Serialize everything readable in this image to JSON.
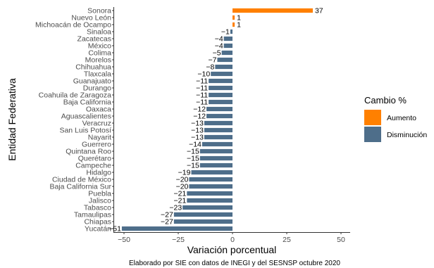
{
  "chart_data": {
    "type": "bar",
    "orientation": "horizontal",
    "xlabel": "Variación porcentual",
    "ylabel": "Entidad Federativa",
    "caption": "Elaborado por SIE con datos de INEGI y del SESNSP octubre 2020",
    "xlim": [
      -55,
      55
    ],
    "xticks": [
      -50,
      -25,
      0,
      25,
      50
    ],
    "legend": {
      "title": "Cambio %",
      "position": "right",
      "items": [
        {
          "label": "Aumento",
          "color": "#FF8000"
        },
        {
          "label": "Disminución",
          "color": "#4E6E8A"
        }
      ]
    },
    "categories": [
      "Sonora",
      "Nuevo León",
      "Michoacán de Ocampo",
      "Sinaloa",
      "Zacatecas",
      "México",
      "Colima",
      "Morelos",
      "Chihuahua",
      "Tlaxcala",
      "Guanajuato",
      "Durango",
      "Coahuila de Zaragoza",
      "Baja California",
      "Oaxaca",
      "Aguascalientes",
      "Veracruz",
      "San Luis Potosí",
      "Nayarit",
      "Guerrero",
      "Quintana Roo",
      "Querétaro",
      "Campeche",
      "Hidalgo",
      "Ciudad de México",
      "Baja California Sur",
      "Puebla",
      "Jalisco",
      "Tabasco",
      "Tamaulipas",
      "Chiapas",
      "Yucatán"
    ],
    "values": [
      37,
      1,
      1,
      -1,
      -4,
      -4,
      -5,
      -7,
      -8,
      -10,
      -11,
      -11,
      -11,
      -11,
      -12,
      -12,
      -13,
      -13,
      -13,
      -14,
      -15,
      -15,
      -15,
      -19,
      -20,
      -20,
      -21,
      -21,
      -23,
      -27,
      -27,
      -51
    ],
    "value_labels": [
      "37",
      "1",
      "1",
      "−1",
      "−4",
      "−4",
      "−5",
      "−7",
      "−8",
      "−10",
      "−11",
      "−11",
      "−11",
      "−11",
      "−12",
      "−12",
      "−13",
      "−13",
      "−13",
      "−14",
      "−15",
      "−15",
      "−15",
      "−19",
      "−20",
      "−20",
      "−21",
      "−21",
      "−23",
      "−27",
      "−27",
      "−51"
    ]
  }
}
